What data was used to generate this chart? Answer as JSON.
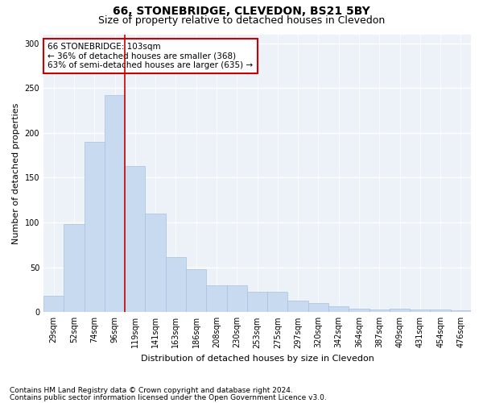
{
  "title": "66, STONEBRIDGE, CLEVEDON, BS21 5BY",
  "subtitle": "Size of property relative to detached houses in Clevedon",
  "xlabel": "Distribution of detached houses by size in Clevedon",
  "ylabel": "Number of detached properties",
  "footnote1": "Contains HM Land Registry data © Crown copyright and database right 2024.",
  "footnote2": "Contains public sector information licensed under the Open Government Licence v3.0.",
  "bar_color": "#c8daf0",
  "bar_edge_color": "#a8c0e0",
  "vline_color": "#cc0000",
  "vline_x": 3.5,
  "annotation_box_color": "#cc0000",
  "annotation_text": "66 STONEBRIDGE: 103sqm\n← 36% of detached houses are smaller (368)\n63% of semi-detached houses are larger (635) →",
  "categories": [
    "29sqm",
    "52sqm",
    "74sqm",
    "96sqm",
    "119sqm",
    "141sqm",
    "163sqm",
    "186sqm",
    "208sqm",
    "230sqm",
    "253sqm",
    "275sqm",
    "297sqm",
    "320sqm",
    "342sqm",
    "364sqm",
    "387sqm",
    "409sqm",
    "431sqm",
    "454sqm",
    "476sqm"
  ],
  "values": [
    18,
    98,
    190,
    242,
    163,
    110,
    61,
    48,
    30,
    30,
    23,
    23,
    13,
    10,
    7,
    4,
    3,
    4,
    3,
    3,
    2
  ],
  "ylim": [
    0,
    310
  ],
  "yticks": [
    0,
    50,
    100,
    150,
    200,
    250,
    300
  ],
  "background_color": "#edf2f8",
  "grid_color": "#ffffff",
  "title_fontsize": 10,
  "subtitle_fontsize": 9,
  "axis_label_fontsize": 8,
  "tick_fontsize": 7,
  "annotation_fontsize": 7.5,
  "footnote_fontsize": 6.5,
  "ylabel_fontsize": 8
}
